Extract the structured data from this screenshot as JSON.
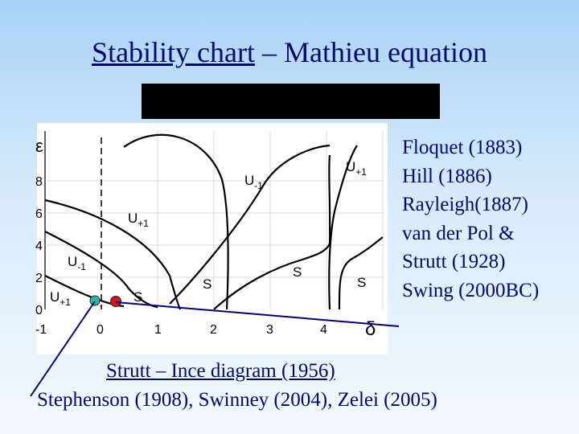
{
  "title": {
    "main": "Stability chart",
    "sep": " – ",
    "sub": "Mathieu equation"
  },
  "chart": {
    "y_symbol": "ε",
    "x_symbol": "δ",
    "y_ticks": [
      "8",
      "6",
      "4",
      "2",
      "0"
    ],
    "x_ticks": [
      "-1",
      "0",
      "1",
      "2",
      "3",
      "4"
    ],
    "region_labels": {
      "u_minus_1_top": "U",
      "u_minus_1_top_sub": "-1",
      "u_plus_1_top": "U",
      "u_plus_1_top_sub": "+1",
      "u_plus_1_mid": "U",
      "u_plus_1_mid_sub": "+1",
      "u_minus_1_left": "U",
      "u_minus_1_left_sub": "-1",
      "u_plus_1_bottom": "U",
      "u_plus_1_bottom_sub": "+1",
      "s1": "S",
      "s2": "S",
      "s3": "S",
      "s4": "S"
    },
    "colors": {
      "dot_teal": "#2bb7a0",
      "dot_red": "#d8141c"
    }
  },
  "refs": [
    "Floquet (1883)",
    "Hill (1886)",
    "Rayleigh(1887)",
    "van der Pol &",
    "Strutt (1928)",
    "Swing (2000BC)"
  ],
  "strutt_ince": "Strutt – Ince diagram (1956)",
  "bottom_refs": "Stephenson (1908), Swinney (2004), Zelei (2005)",
  "colors": {
    "text": "#000a6e",
    "line": "#000080"
  }
}
